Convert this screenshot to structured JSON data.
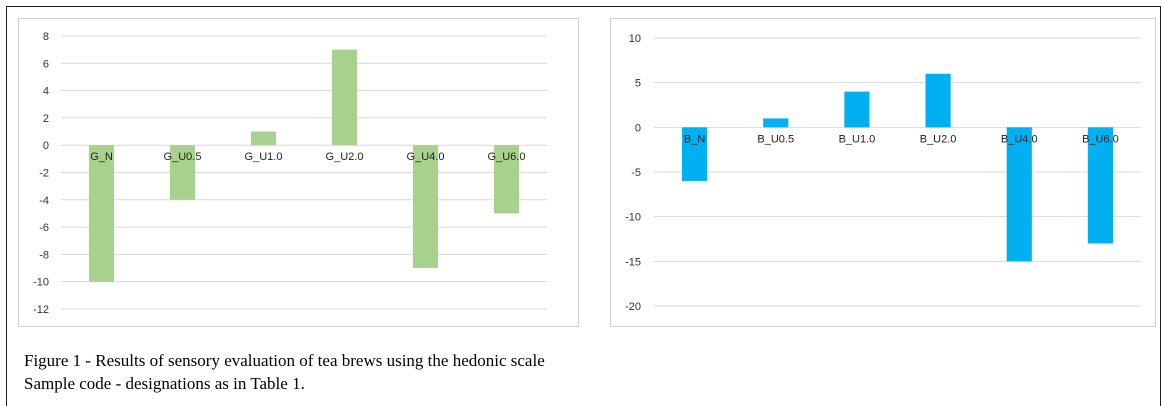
{
  "chart_data": [
    {
      "type": "bar",
      "categories": [
        "G_N",
        "G_U0.5",
        "G_U1.0",
        "G_U2.0",
        "G_U4.0",
        "G_U6.0"
      ],
      "values": [
        -10,
        -4,
        1,
        7,
        -9,
        -5
      ],
      "ylim": [
        -12,
        8
      ],
      "yticks": [
        8,
        6,
        4,
        2,
        0,
        -2,
        -4,
        -6,
        -8,
        -10,
        -12
      ],
      "grid": true,
      "legend": "none",
      "bar_color": "#a9d18e",
      "title": "",
      "xlabel": "",
      "ylabel": ""
    },
    {
      "type": "bar",
      "categories": [
        "B_N",
        "B_U0.5",
        "B_U1.0",
        "B_U2.0",
        "B_U4.0",
        "B_U6.0"
      ],
      "values": [
        -6,
        1,
        4,
        6,
        -15,
        -13
      ],
      "ylim": [
        -20,
        10
      ],
      "yticks": [
        10,
        5,
        0,
        -5,
        -10,
        -15,
        -20
      ],
      "grid": true,
      "legend": "none",
      "bar_color": "#00b0f0",
      "title": "",
      "xlabel": "",
      "ylabel": ""
    }
  ],
  "caption": {
    "line1": "Figure 1 - Results of sensory evaluation of tea brews using the hedonic scale",
    "line2": "Sample code - designations as in Table 1."
  }
}
